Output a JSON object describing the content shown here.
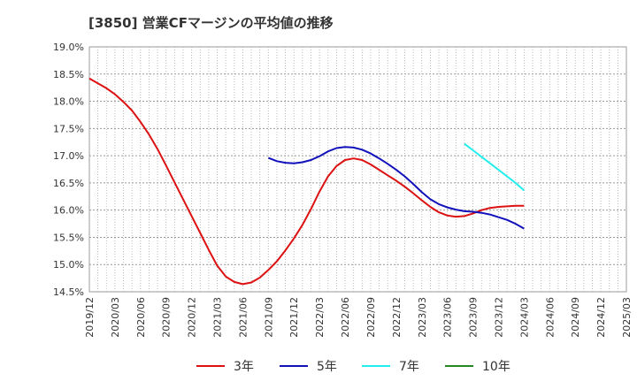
{
  "chart_data": {
    "type": "line",
    "title": "[3850]  営業CFマージンの平均値の推移",
    "xlabel": "",
    "ylabel": "",
    "ylim": [
      14.5,
      19.0
    ],
    "yticks": [
      "19.0%",
      "18.5%",
      "18.0%",
      "17.5%",
      "17.0%",
      "16.5%",
      "16.0%",
      "15.5%",
      "15.0%",
      "14.5%"
    ],
    "ytick_values": [
      19.0,
      18.5,
      18.0,
      17.5,
      17.0,
      16.5,
      16.0,
      15.5,
      15.0,
      14.5
    ],
    "xticks": [
      "2019/12",
      "2020/03",
      "2020/06",
      "2020/09",
      "2020/12",
      "2021/03",
      "2021/06",
      "2021/09",
      "2021/12",
      "2022/03",
      "2022/06",
      "2022/09",
      "2022/12",
      "2023/03",
      "2023/06",
      "2023/09",
      "2023/12",
      "2024/03",
      "2024/06",
      "2024/09",
      "2024/12",
      "2025/03"
    ],
    "grid": true,
    "legend_position": "bottom",
    "series": [
      {
        "name": "3年",
        "color": "#dd1111",
        "x": [
          "2019/12",
          "2020/01",
          "2020/02",
          "2020/03",
          "2020/04",
          "2020/05",
          "2020/06",
          "2020/07",
          "2020/08",
          "2020/09",
          "2020/10",
          "2020/11",
          "2020/12",
          "2021/01",
          "2021/02",
          "2021/03",
          "2021/04",
          "2021/05",
          "2021/06",
          "2021/07",
          "2021/08",
          "2021/09",
          "2021/10",
          "2021/11",
          "2021/12",
          "2022/01",
          "2022/02",
          "2022/03",
          "2022/04",
          "2022/05",
          "2022/06",
          "2022/07",
          "2022/08",
          "2022/09",
          "2022/10",
          "2022/11",
          "2022/12",
          "2023/01",
          "2023/02",
          "2023/03",
          "2023/04",
          "2023/05",
          "2023/06",
          "2023/07",
          "2023/08",
          "2023/09",
          "2023/10",
          "2023/11",
          "2023/12",
          "2024/01",
          "2024/02",
          "2024/03"
        ],
        "values": [
          18.42,
          18.33,
          18.24,
          18.13,
          17.99,
          17.83,
          17.62,
          17.39,
          17.12,
          16.82,
          16.51,
          16.2,
          15.89,
          15.58,
          15.27,
          14.98,
          14.78,
          14.68,
          14.64,
          14.67,
          14.76,
          14.9,
          15.06,
          15.26,
          15.48,
          15.73,
          16.02,
          16.34,
          16.62,
          16.81,
          16.92,
          16.95,
          16.92,
          16.84,
          16.74,
          16.64,
          16.54,
          16.43,
          16.31,
          16.18,
          16.06,
          15.96,
          15.9,
          15.88,
          15.89,
          15.94,
          16.0,
          16.04,
          16.06,
          16.07,
          16.08,
          16.08
        ]
      },
      {
        "name": "5年",
        "color": "#1111bb",
        "x": [
          "2021/09",
          "2021/10",
          "2021/11",
          "2021/12",
          "2022/01",
          "2022/02",
          "2022/03",
          "2022/04",
          "2022/05",
          "2022/06",
          "2022/07",
          "2022/08",
          "2022/09",
          "2022/10",
          "2022/11",
          "2022/12",
          "2023/01",
          "2023/02",
          "2023/03",
          "2023/04",
          "2023/05",
          "2023/06",
          "2023/07",
          "2023/08",
          "2023/09",
          "2023/10",
          "2023/11",
          "2023/12",
          "2024/01",
          "2024/02",
          "2024/03"
        ],
        "values": [
          16.96,
          16.9,
          16.87,
          16.86,
          16.88,
          16.92,
          16.99,
          17.08,
          17.14,
          17.16,
          17.15,
          17.11,
          17.04,
          16.95,
          16.85,
          16.74,
          16.62,
          16.48,
          16.33,
          16.2,
          16.11,
          16.05,
          16.01,
          15.98,
          15.97,
          15.95,
          15.92,
          15.87,
          15.82,
          15.75,
          15.66
        ]
      },
      {
        "name": "7年",
        "color": "#22eeee",
        "x": [
          "2023/08",
          "2023/09",
          "2023/10",
          "2023/11",
          "2023/12",
          "2024/01",
          "2024/02",
          "2024/03"
        ],
        "values": [
          17.22,
          17.1,
          16.98,
          16.86,
          16.74,
          16.62,
          16.5,
          16.36
        ]
      },
      {
        "name": "10年",
        "color": "#228822",
        "x": [],
        "values": []
      }
    ]
  }
}
